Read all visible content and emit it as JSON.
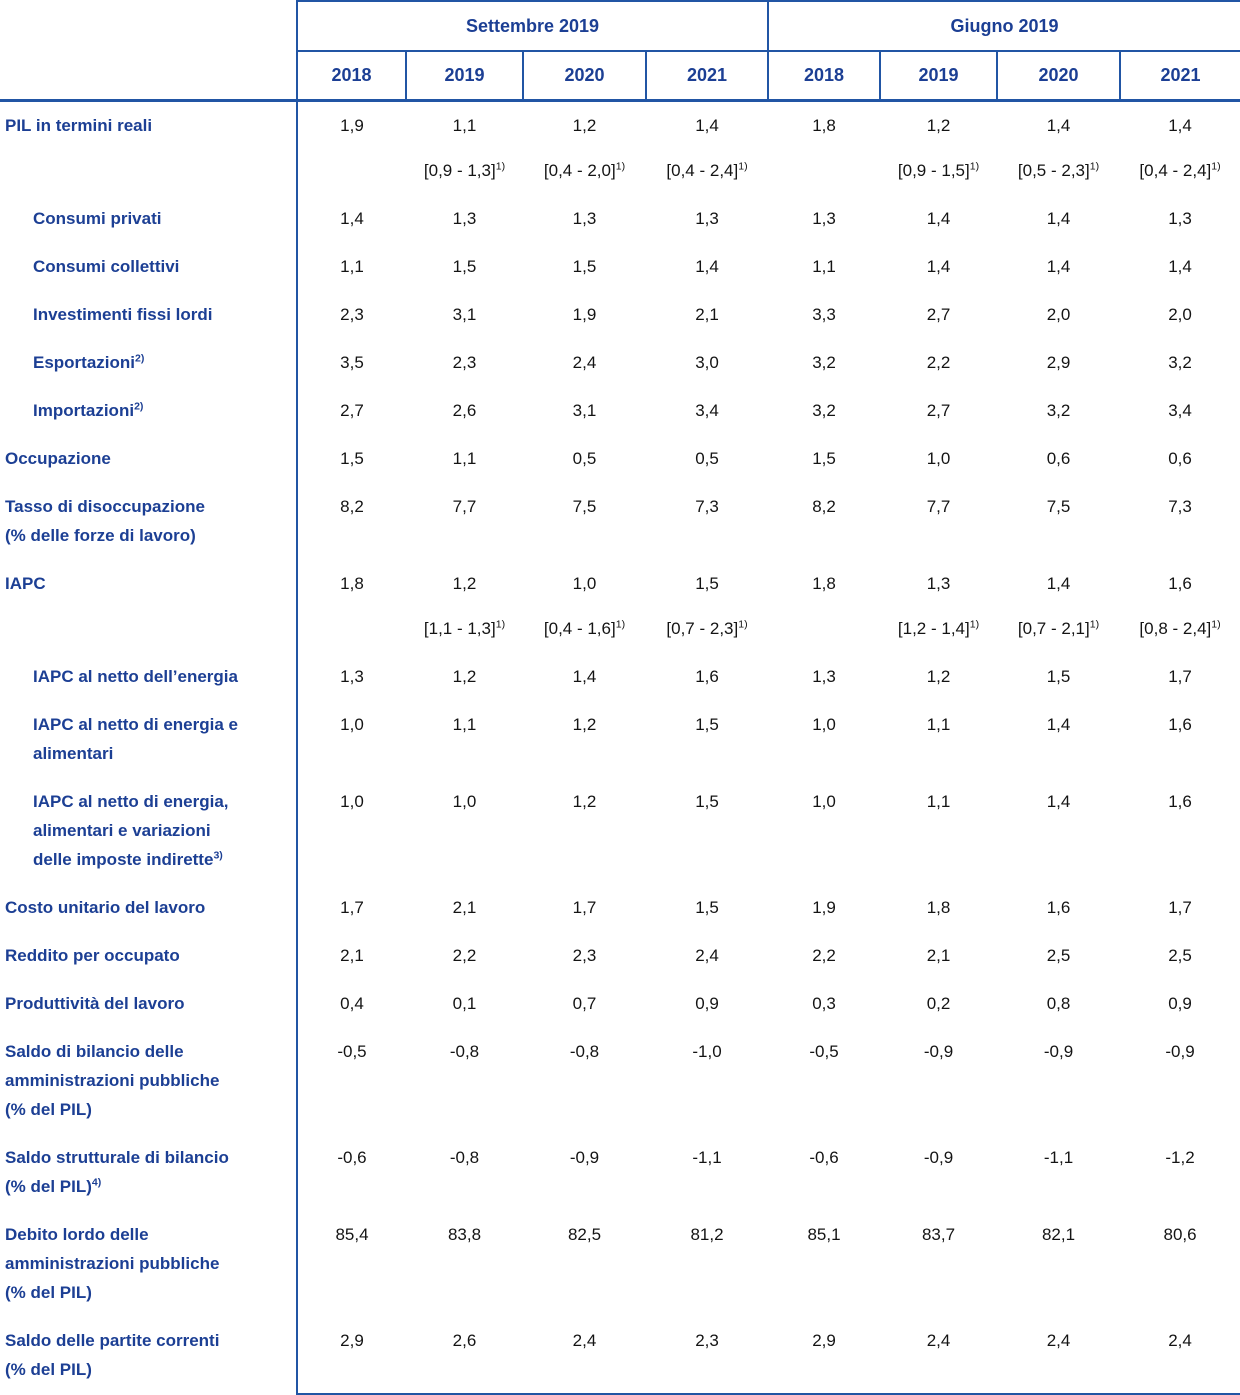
{
  "table": {
    "range_sup": "1)",
    "groups": [
      {
        "label": "Settembre 2019",
        "years": [
          "2018",
          "2019",
          "2020",
          "2021"
        ]
      },
      {
        "label": "Giugno 2019",
        "years": [
          "2018",
          "2019",
          "2020",
          "2021"
        ]
      }
    ],
    "rows": [
      {
        "label_lines": [
          "PIL in termini reali"
        ],
        "label_sup": "",
        "indent": false,
        "values": [
          "1,9",
          "1,1",
          "1,2",
          "1,4",
          "1,8",
          "1,2",
          "1,4",
          "1,4"
        ],
        "ranges": [
          "",
          "[0,9 - 1,3]",
          "[0,4 - 2,0]",
          "[0,4 - 2,4]",
          "",
          "[0,9 - 1,5]",
          "[0,5 - 2,3]",
          "[0,4 - 2,4]"
        ]
      },
      {
        "label_lines": [
          "Consumi privati"
        ],
        "label_sup": "",
        "indent": true,
        "values": [
          "1,4",
          "1,3",
          "1,3",
          "1,3",
          "1,3",
          "1,4",
          "1,4",
          "1,3"
        ]
      },
      {
        "label_lines": [
          "Consumi collettivi"
        ],
        "label_sup": "",
        "indent": true,
        "values": [
          "1,1",
          "1,5",
          "1,5",
          "1,4",
          "1,1",
          "1,4",
          "1,4",
          "1,4"
        ]
      },
      {
        "label_lines": [
          "Investimenti fissi lordi"
        ],
        "label_sup": "",
        "indent": true,
        "values": [
          "2,3",
          "3,1",
          "1,9",
          "2,1",
          "3,3",
          "2,7",
          "2,0",
          "2,0"
        ]
      },
      {
        "label_lines": [
          "Esportazioni"
        ],
        "label_sup": "2)",
        "indent": true,
        "values": [
          "3,5",
          "2,3",
          "2,4",
          "3,0",
          "3,2",
          "2,2",
          "2,9",
          "3,2"
        ]
      },
      {
        "label_lines": [
          "Importazioni"
        ],
        "label_sup": "2)",
        "indent": true,
        "values": [
          "2,7",
          "2,6",
          "3,1",
          "3,4",
          "3,2",
          "2,7",
          "3,2",
          "3,4"
        ]
      },
      {
        "label_lines": [
          "Occupazione"
        ],
        "label_sup": "",
        "indent": false,
        "values": [
          "1,5",
          "1,1",
          "0,5",
          "0,5",
          "1,5",
          "1,0",
          "0,6",
          "0,6"
        ]
      },
      {
        "label_lines": [
          "Tasso di disoccupazione",
          "(% delle forze di lavoro)"
        ],
        "label_sup": "",
        "indent": false,
        "values": [
          "8,2",
          "7,7",
          "7,5",
          "7,3",
          "8,2",
          "7,7",
          "7,5",
          "7,3"
        ]
      },
      {
        "label_lines": [
          "IAPC"
        ],
        "label_sup": "",
        "indent": false,
        "values": [
          "1,8",
          "1,2",
          "1,0",
          "1,5",
          "1,8",
          "1,3",
          "1,4",
          "1,6"
        ],
        "ranges": [
          "",
          "[1,1 - 1,3]",
          "[0,4 - 1,6]",
          "[0,7 - 2,3]",
          "",
          "[1,2 - 1,4]",
          "[0,7 - 2,1]",
          "[0,8 - 2,4]"
        ]
      },
      {
        "label_lines": [
          "IAPC al netto dell’energia"
        ],
        "label_sup": "",
        "indent": true,
        "values": [
          "1,3",
          "1,2",
          "1,4",
          "1,6",
          "1,3",
          "1,2",
          "1,5",
          "1,7"
        ]
      },
      {
        "label_lines": [
          "IAPC al netto di energia e",
          "alimentari"
        ],
        "label_sup": "",
        "indent": true,
        "values": [
          "1,0",
          "1,1",
          "1,2",
          "1,5",
          "1,0",
          "1,1",
          "1,4",
          "1,6"
        ]
      },
      {
        "label_lines": [
          "IAPC al netto di energia,",
          "alimentari e variazioni",
          "delle imposte indirette"
        ],
        "label_sup": "3)",
        "indent": true,
        "values": [
          "1,0",
          "1,0",
          "1,2",
          "1,5",
          "1,0",
          "1,1",
          "1,4",
          "1,6"
        ]
      },
      {
        "label_lines": [
          "Costo unitario del lavoro"
        ],
        "label_sup": "",
        "indent": false,
        "values": [
          "1,7",
          "2,1",
          "1,7",
          "1,5",
          "1,9",
          "1,8",
          "1,6",
          "1,7"
        ]
      },
      {
        "label_lines": [
          "Reddito per occupato"
        ],
        "label_sup": "",
        "indent": false,
        "values": [
          "2,1",
          "2,2",
          "2,3",
          "2,4",
          "2,2",
          "2,1",
          "2,5",
          "2,5"
        ]
      },
      {
        "label_lines": [
          "Produttività del lavoro"
        ],
        "label_sup": "",
        "indent": false,
        "values": [
          "0,4",
          "0,1",
          "0,7",
          "0,9",
          "0,3",
          "0,2",
          "0,8",
          "0,9"
        ]
      },
      {
        "label_lines": [
          "Saldo di bilancio delle",
          "amministrazioni pubbliche",
          "(% del PIL)"
        ],
        "label_sup": "",
        "indent": false,
        "values": [
          "-0,5",
          "-0,8",
          "-0,8",
          "-1,0",
          "-0,5",
          "-0,9",
          "-0,9",
          "-0,9"
        ]
      },
      {
        "label_lines": [
          "Saldo strutturale di bilancio",
          "(% del PIL)"
        ],
        "label_sup": "4)",
        "indent": false,
        "values": [
          "-0,6",
          "-0,8",
          "-0,9",
          "-1,1",
          "-0,6",
          "-0,9",
          "-1,1",
          "-1,2"
        ]
      },
      {
        "label_lines": [
          "Debito lordo delle",
          "amministrazioni pubbliche",
          "(% del PIL)"
        ],
        "label_sup": "",
        "indent": false,
        "values": [
          "85,4",
          "83,8",
          "82,5",
          "81,2",
          "85,1",
          "83,7",
          "82,1",
          "80,6"
        ]
      },
      {
        "label_lines": [
          "Saldo delle partite correnti",
          "(% del PIL)"
        ],
        "label_sup": "",
        "indent": false,
        "values": [
          "2,9",
          "2,6",
          "2,4",
          "2,3",
          "2,9",
          "2,4",
          "2,4",
          "2,4"
        ]
      }
    ]
  }
}
